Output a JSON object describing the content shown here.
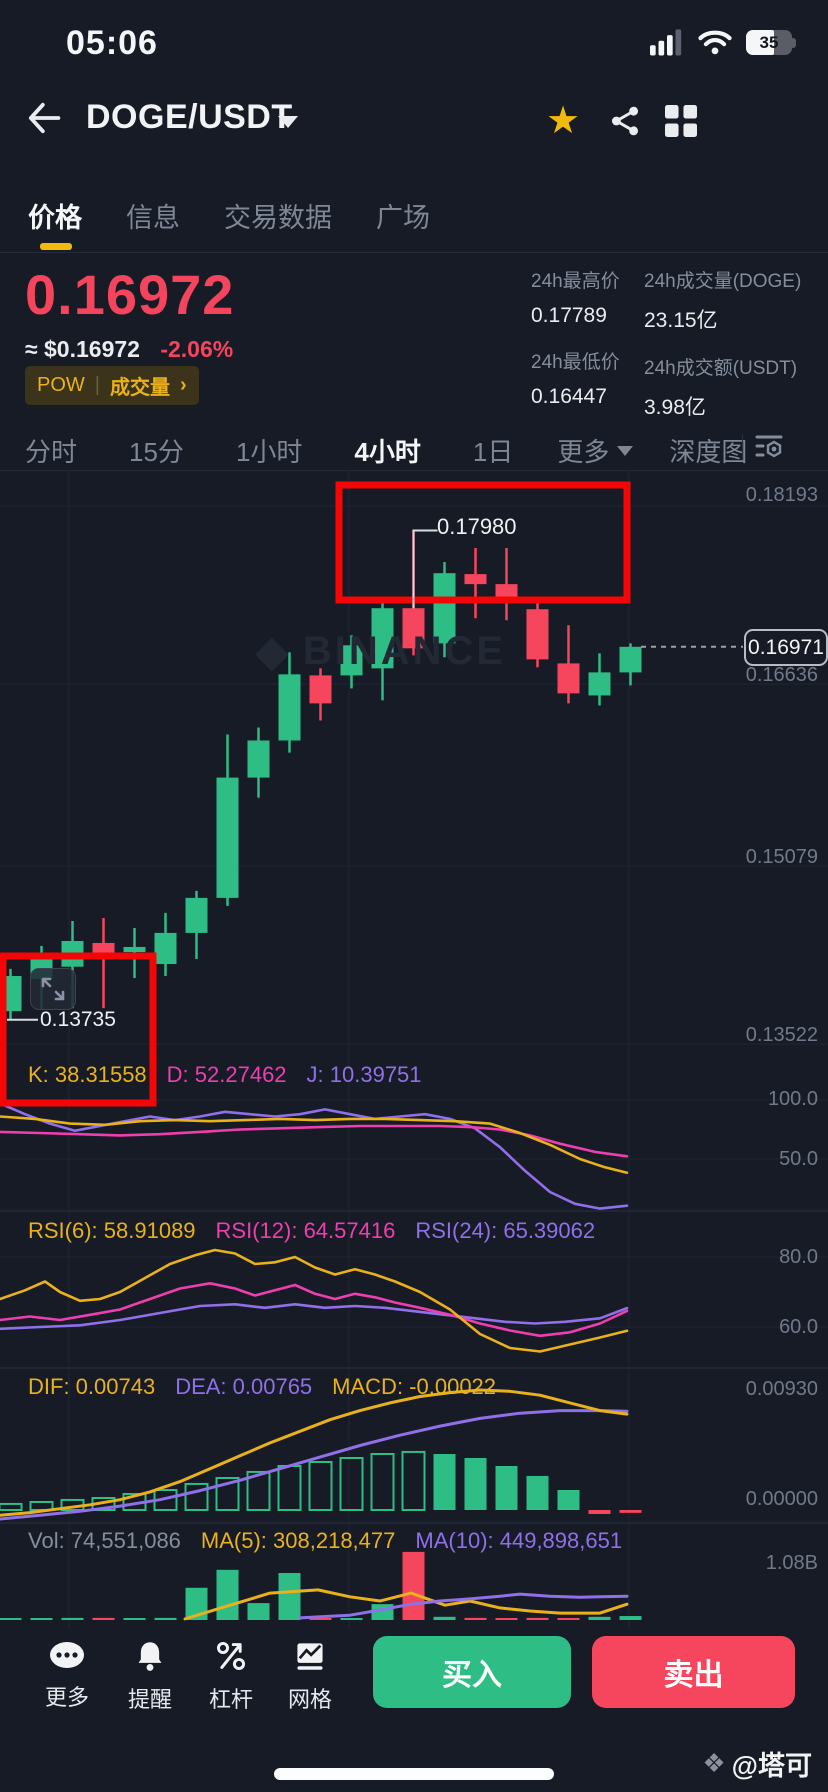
{
  "status_bar": {
    "time": "05:06",
    "battery_level": "35"
  },
  "header": {
    "title": "DOGE/USDT"
  },
  "nav_tabs": {
    "items": [
      {
        "label": "价格",
        "active": true
      },
      {
        "label": "信息",
        "active": false
      },
      {
        "label": "交易数据",
        "active": false
      },
      {
        "label": "广场",
        "active": false
      }
    ]
  },
  "price_section": {
    "price": "0.16972",
    "fiat": "≈ $0.16972",
    "change": "-2.06%",
    "badge": {
      "tag": "POW",
      "divider": "|",
      "label": "成交量",
      "arrow": "›"
    },
    "stats": [
      {
        "label": "24h最高价",
        "value": "0.17789"
      },
      {
        "label": "24h最低价",
        "value": "0.16447"
      },
      {
        "label": "24h成交量(DOGE)",
        "value": "23.15亿"
      },
      {
        "label": "24h成交额(USDT)",
        "value": "3.98亿"
      }
    ]
  },
  "timeframe_bar": {
    "items": [
      {
        "label": "分时",
        "active": false
      },
      {
        "label": "15分",
        "active": false
      },
      {
        "label": "1小时",
        "active": false
      },
      {
        "label": "4小时",
        "active": true
      },
      {
        "label": "1日",
        "active": false
      },
      {
        "label": "更多",
        "active": false
      },
      {
        "label": "深度图",
        "active": false
      }
    ]
  },
  "watermark": {
    "brand": "BINANCE"
  },
  "annotations": {
    "high_callout": "0.17980",
    "low_callout": "0.13735",
    "current_price": "0.16971"
  },
  "toolbar": {
    "items": [
      {
        "label": "更多",
        "icon": "more-icon"
      },
      {
        "label": "提醒",
        "icon": "bell-icon"
      },
      {
        "label": "杠杆",
        "icon": "leverage-icon"
      },
      {
        "label": "网格",
        "icon": "grid-trade-icon"
      }
    ],
    "buy_label": "买入",
    "sell_label": "卖出"
  },
  "footer": {
    "watermark": "@塔可"
  },
  "chart_data": {
    "type": "candlestick_with_indicators",
    "symbol": "DOGE/USDT",
    "interval": "4小时",
    "palette": {
      "up": "#2EBD85",
      "down": "#F6465D",
      "yellow": "#E9B11C",
      "pink": "#ED3FAE",
      "purple": "#9070E8",
      "accent": "#F0B90B",
      "annotation_red": "#F40606",
      "grid": "#1F2531",
      "separator": "#232A39",
      "dashed": "#9BA1AC",
      "callout": "#D8DCE2"
    },
    "price_axis_labels": [
      "0.18193",
      "0.16636",
      "0.15079",
      "0.13522"
    ],
    "current_price": 0.16971,
    "high_annotation": 0.1798,
    "low_annotation": 0.13735,
    "candles": [
      {
        "o": 0.13809,
        "h": 0.14176,
        "l": 0.13735,
        "c": 0.14114
      },
      {
        "o": 0.14088,
        "h": 0.14375,
        "l": 0.13827,
        "c": 0.14314
      },
      {
        "o": 0.14195,
        "h": 0.14592,
        "l": 0.13835,
        "c": 0.14418
      },
      {
        "o": 0.14401,
        "h": 0.14618,
        "l": 0.13835,
        "c": 0.14262
      },
      {
        "o": 0.14322,
        "h": 0.14531,
        "l": 0.14096,
        "c": 0.14366
      },
      {
        "o": 0.14218,
        "h": 0.14662,
        "l": 0.14114,
        "c": 0.14488
      },
      {
        "o": 0.14488,
        "h": 0.14853,
        "l": 0.14262,
        "c": 0.14792
      },
      {
        "o": 0.14792,
        "h": 0.1621,
        "l": 0.14723,
        "c": 0.15836
      },
      {
        "o": 0.15836,
        "h": 0.16271,
        "l": 0.15662,
        "c": 0.16158
      },
      {
        "o": 0.16158,
        "h": 0.16923,
        "l": 0.16053,
        "c": 0.16732
      },
      {
        "o": 0.16723,
        "h": 0.16784,
        "l": 0.16332,
        "c": 0.1648
      },
      {
        "o": 0.16723,
        "h": 0.17071,
        "l": 0.1661,
        "c": 0.16984
      },
      {
        "o": 0.16784,
        "h": 0.17375,
        "l": 0.16506,
        "c": 0.17306
      },
      {
        "o": 0.17306,
        "h": 0.1798,
        "l": 0.16897,
        "c": 0.16958
      },
      {
        "o": 0.17001,
        "h": 0.17706,
        "l": 0.1688,
        "c": 0.1761
      },
      {
        "o": 0.17602,
        "h": 0.17828,
        "l": 0.17219,
        "c": 0.17515
      },
      {
        "o": 0.17515,
        "h": 0.17828,
        "l": 0.17201,
        "c": 0.17375
      },
      {
        "o": 0.17297,
        "h": 0.17375,
        "l": 0.16793,
        "c": 0.16862
      },
      {
        "o": 0.16827,
        "h": 0.17158,
        "l": 0.1648,
        "c": 0.16567
      },
      {
        "o": 0.16549,
        "h": 0.16914,
        "l": 0.16462,
        "c": 0.16749
      },
      {
        "o": 0.16749,
        "h": 0.17001,
        "l": 0.16636,
        "c": 0.16971
      }
    ],
    "kdj": {
      "k_label": "K: 38.31558",
      "d_label": "D: 52.27462",
      "j_label": "J: 10.39751",
      "axis": [
        "100.0",
        "50.0"
      ],
      "k": [
        [
          0,
          86
        ],
        [
          35,
          84
        ],
        [
          70,
          80
        ],
        [
          105,
          79
        ],
        [
          140,
          82
        ],
        [
          175,
          83
        ],
        [
          210,
          82
        ],
        [
          245,
          83
        ],
        [
          280,
          84
        ],
        [
          315,
          83
        ],
        [
          350,
          84
        ],
        [
          385,
          84
        ],
        [
          420,
          83
        ],
        [
          455,
          82
        ],
        [
          490,
          80
        ],
        [
          520,
          72
        ],
        [
          550,
          62
        ],
        [
          580,
          50
        ],
        [
          605,
          43
        ],
        [
          627,
          38.3
        ]
      ],
      "d": [
        [
          0,
          73
        ],
        [
          40,
          72
        ],
        [
          80,
          71
        ],
        [
          120,
          70
        ],
        [
          160,
          71
        ],
        [
          200,
          73
        ],
        [
          240,
          75
        ],
        [
          280,
          76
        ],
        [
          320,
          77
        ],
        [
          360,
          78
        ],
        [
          400,
          78
        ],
        [
          440,
          78
        ],
        [
          470,
          77
        ],
        [
          500,
          75
        ],
        [
          530,
          70
        ],
        [
          560,
          63
        ],
        [
          595,
          56
        ],
        [
          627,
          52.3
        ]
      ],
      "j": [
        [
          0,
          97
        ],
        [
          25,
          88
        ],
        [
          50,
          80
        ],
        [
          75,
          74
        ],
        [
          100,
          78
        ],
        [
          125,
          82
        ],
        [
          150,
          86
        ],
        [
          175,
          83
        ],
        [
          200,
          86
        ],
        [
          225,
          90
        ],
        [
          250,
          88
        ],
        [
          275,
          86
        ],
        [
          300,
          88
        ],
        [
          325,
          92
        ],
        [
          350,
          88
        ],
        [
          375,
          84
        ],
        [
          400,
          86
        ],
        [
          425,
          88
        ],
        [
          450,
          84
        ],
        [
          475,
          76
        ],
        [
          500,
          60
        ],
        [
          525,
          40
        ],
        [
          550,
          22
        ],
        [
          575,
          12
        ],
        [
          600,
          8
        ],
        [
          627,
          10.4
        ]
      ]
    },
    "rsi": {
      "labels": [
        "RSI(6): 58.91089",
        "RSI(12): 64.57416",
        "RSI(24): 65.39062"
      ],
      "axis": [
        "80.0",
        "60.0"
      ],
      "rsi6": [
        [
          0,
          68
        ],
        [
          25,
          70.5
        ],
        [
          45,
          73
        ],
        [
          60,
          70
        ],
        [
          80,
          67.5
        ],
        [
          100,
          68
        ],
        [
          120,
          70
        ],
        [
          145,
          74
        ],
        [
          170,
          78
        ],
        [
          195,
          80.5
        ],
        [
          215,
          82
        ],
        [
          235,
          81
        ],
        [
          255,
          78
        ],
        [
          275,
          78.5
        ],
        [
          295,
          80
        ],
        [
          315,
          77
        ],
        [
          335,
          75
        ],
        [
          355,
          76.5
        ],
        [
          375,
          75
        ],
        [
          395,
          73
        ],
        [
          420,
          70
        ],
        [
          450,
          65
        ],
        [
          480,
          58
        ],
        [
          510,
          54
        ],
        [
          540,
          53
        ],
        [
          570,
          55
        ],
        [
          600,
          57
        ],
        [
          627,
          58.9
        ]
      ],
      "rsi12": [
        [
          0,
          62
        ],
        [
          30,
          63
        ],
        [
          60,
          62
        ],
        [
          90,
          63.5
        ],
        [
          120,
          65
        ],
        [
          150,
          68
        ],
        [
          180,
          71
        ],
        [
          210,
          72.5
        ],
        [
          235,
          71
        ],
        [
          255,
          69
        ],
        [
          275,
          70.5
        ],
        [
          295,
          72
        ],
        [
          315,
          69.5
        ],
        [
          335,
          68
        ],
        [
          355,
          69.5
        ],
        [
          375,
          68.5
        ],
        [
          395,
          67
        ],
        [
          420,
          65.5
        ],
        [
          450,
          63.5
        ],
        [
          480,
          61
        ],
        [
          510,
          59
        ],
        [
          540,
          57.5
        ],
        [
          570,
          58.5
        ],
        [
          600,
          61
        ],
        [
          627,
          64.6
        ]
      ],
      "rsi24": [
        [
          0,
          59.5
        ],
        [
          40,
          60
        ],
        [
          80,
          60.5
        ],
        [
          120,
          62
        ],
        [
          160,
          64
        ],
        [
          200,
          66
        ],
        [
          235,
          66.5
        ],
        [
          265,
          65.5
        ],
        [
          295,
          66.5
        ],
        [
          325,
          65.5
        ],
        [
          355,
          66
        ],
        [
          385,
          65.5
        ],
        [
          415,
          64.5
        ],
        [
          445,
          63.5
        ],
        [
          475,
          62.5
        ],
        [
          505,
          61.5
        ],
        [
          535,
          61
        ],
        [
          565,
          61.5
        ],
        [
          600,
          62.5
        ],
        [
          627,
          65.4
        ]
      ]
    },
    "macd": {
      "labels": [
        "DIF: 0.00743",
        "DEA: 0.00765",
        "MACD: -0.00022"
      ],
      "axis": [
        "0.00930",
        "0.00000"
      ],
      "dif": [
        [
          0,
          -0.0004
        ],
        [
          30,
          -0.0002
        ],
        [
          60,
          0.0001
        ],
        [
          90,
          0.0004
        ],
        [
          120,
          0.0008
        ],
        [
          150,
          0.0014
        ],
        [
          180,
          0.0022
        ],
        [
          210,
          0.0032
        ],
        [
          240,
          0.0042
        ],
        [
          270,
          0.0052
        ],
        [
          300,
          0.0061
        ],
        [
          330,
          0.007
        ],
        [
          360,
          0.0077
        ],
        [
          390,
          0.0083
        ],
        [
          420,
          0.0088
        ],
        [
          450,
          0.0091
        ],
        [
          480,
          0.0093
        ],
        [
          510,
          0.0092
        ],
        [
          540,
          0.0089
        ],
        [
          570,
          0.0083
        ],
        [
          600,
          0.0077
        ],
        [
          627,
          0.00743
        ]
      ],
      "dea": [
        [
          0,
          -0.0007
        ],
        [
          40,
          -0.0004
        ],
        [
          80,
          -0.0001
        ],
        [
          120,
          0.0003
        ],
        [
          160,
          0.0008
        ],
        [
          200,
          0.0015
        ],
        [
          240,
          0.0023
        ],
        [
          280,
          0.0032
        ],
        [
          320,
          0.0041
        ],
        [
          360,
          0.005
        ],
        [
          400,
          0.0058
        ],
        [
          440,
          0.0065
        ],
        [
          480,
          0.0071
        ],
        [
          520,
          0.0075
        ],
        [
          560,
          0.0077
        ],
        [
          600,
          0.0077
        ],
        [
          627,
          0.00765
        ]
      ],
      "histogram": [
        {
          "v": 0.00047,
          "hollow": true
        },
        {
          "v": 0.00062,
          "hollow": true
        },
        {
          "v": 0.00078,
          "hollow": true
        },
        {
          "v": 0.00093,
          "hollow": true
        },
        {
          "v": 0.00124,
          "hollow": true
        },
        {
          "v": 0.00155,
          "hollow": true
        },
        {
          "v": 0.00202,
          "hollow": true
        },
        {
          "v": 0.00248,
          "hollow": true
        },
        {
          "v": 0.00295,
          "hollow": true
        },
        {
          "v": 0.00341,
          "hollow": true
        },
        {
          "v": 0.00372,
          "hollow": true
        },
        {
          "v": 0.00403,
          "hollow": true
        },
        {
          "v": 0.00434,
          "hollow": true
        },
        {
          "v": 0.0045,
          "hollow": true
        },
        {
          "v": 0.00434,
          "hollow": false
        },
        {
          "v": 0.00403,
          "hollow": false
        },
        {
          "v": 0.00341,
          "hollow": false
        },
        {
          "v": 0.00264,
          "hollow": false
        },
        {
          "v": 0.00155,
          "hollow": false
        },
        {
          "v": -0.00031,
          "hollow": false
        },
        {
          "v": -0.00022,
          "hollow": false
        }
      ]
    },
    "volume": {
      "labels": [
        "Vol: 74,551,086",
        "MA(5): 308,218,477",
        "MA(10): 449,898,651"
      ],
      "axis": [
        "1.08B"
      ],
      "bars_billions": [
        0.02,
        0.02,
        0.04,
        0.04,
        0.02,
        0.04,
        0.61,
        0.95,
        0.32,
        0.89,
        0.02,
        0.02,
        0.3,
        1.29,
        0.06,
        0.04,
        0.02,
        0.04,
        0.02,
        0.06,
        0.075
      ],
      "ma5": [
        [
          185,
          0.02
        ],
        [
          230,
          0.28
        ],
        [
          270,
          0.51
        ],
        [
          318,
          0.57
        ],
        [
          350,
          0.44
        ],
        [
          380,
          0.36
        ],
        [
          411,
          0.51
        ],
        [
          445,
          0.28
        ],
        [
          470,
          0.36
        ],
        [
          500,
          0.23
        ],
        [
          530,
          0.17
        ],
        [
          560,
          0.13
        ],
        [
          600,
          0.13
        ],
        [
          627,
          0.3
        ]
      ],
      "ma10": [
        [
          300,
          0.04
        ],
        [
          330,
          0.07
        ],
        [
          350,
          0.09
        ],
        [
          380,
          0.19
        ],
        [
          411,
          0.3
        ],
        [
          440,
          0.36
        ],
        [
          470,
          0.4
        ],
        [
          500,
          0.45
        ],
        [
          520,
          0.49
        ],
        [
          550,
          0.45
        ],
        [
          580,
          0.43
        ],
        [
          600,
          0.44
        ],
        [
          627,
          0.45
        ]
      ]
    }
  }
}
